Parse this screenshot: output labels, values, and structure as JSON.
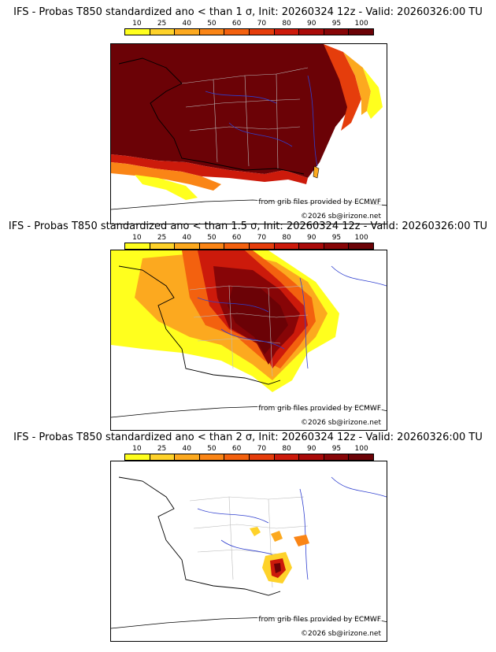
{
  "colorbar": {
    "ticks": [
      "10",
      "25",
      "40",
      "50",
      "60",
      "70",
      "80",
      "90",
      "95",
      "100"
    ],
    "colors": [
      "#ffff1e",
      "#fed22a",
      "#fca91f",
      "#fa8516",
      "#f3610f",
      "#e53d0c",
      "#cc1a0b",
      "#a90a09",
      "#870507",
      "#6b0206"
    ]
  },
  "credits": {
    "source": "from grib files provided by ECMWF",
    "copyright": "©2026 sb@irizone.net"
  },
  "panels": [
    {
      "title": "IFS - Probas T850  standardized ano < than 1 σ, Init: 20260324 12z - Valid: 20260326:00 TU",
      "threshold": "1 σ"
    },
    {
      "title": "IFS - Probas T850  standardized ano < than 1.5 σ, Init: 20260324 12z - Valid: 20260326:00 TU",
      "threshold": "1.5 σ"
    },
    {
      "title": "IFS - Probas T850  standardized ano < than 2 σ, Init: 20260324 12z - Valid: 20260326:00 TU",
      "threshold": "2 σ"
    }
  ]
}
